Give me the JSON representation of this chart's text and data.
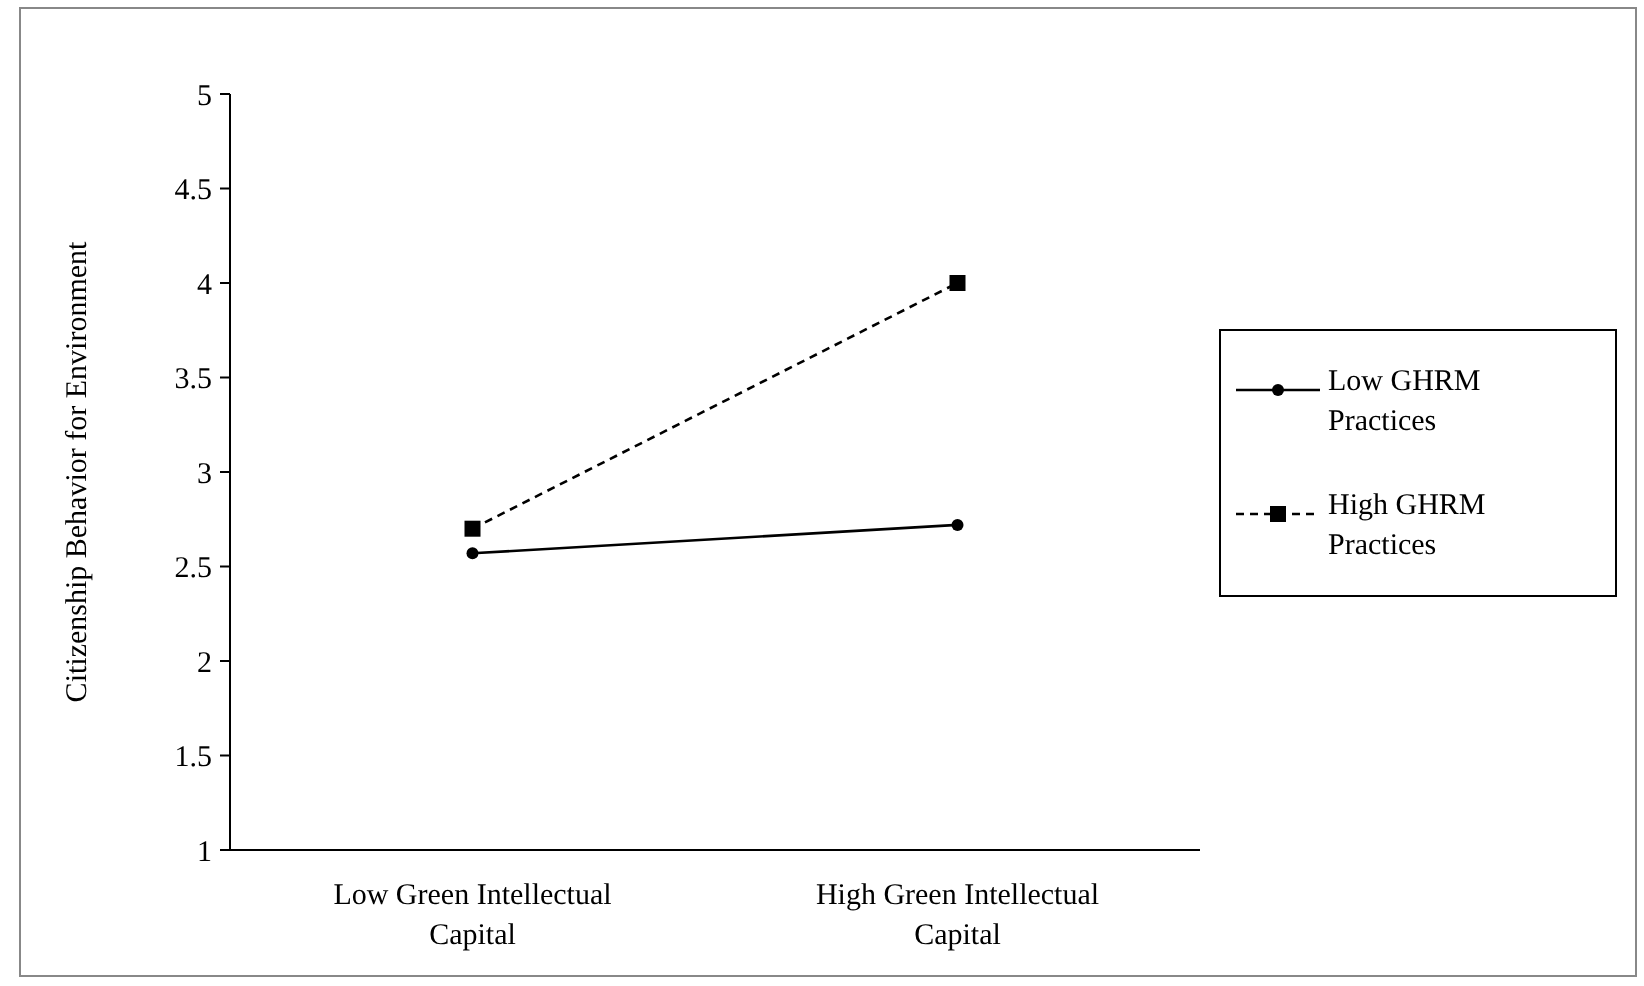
{
  "chart_data": {
    "type": "line",
    "ylabel": "Citizenship Behavior for Environment",
    "categories": [
      "Low Green Intellectual Capital",
      "High Green Intellectual Capital"
    ],
    "series": [
      {
        "name": "Low GHRM Practices",
        "color": "#000000",
        "values": [
          2.57,
          2.72
        ],
        "marker": "circle",
        "line_style": "solid"
      },
      {
        "name": "High GHRM Practices",
        "color": "#000000",
        "values": [
          2.7,
          4.0
        ],
        "marker": "square",
        "line_style": "dashed"
      }
    ],
    "ylim": [
      1,
      5
    ],
    "yticks": [
      1,
      1.5,
      2,
      2.5,
      3,
      3.5,
      4,
      4.5,
      5
    ],
    "grid": false,
    "legend": "right"
  }
}
